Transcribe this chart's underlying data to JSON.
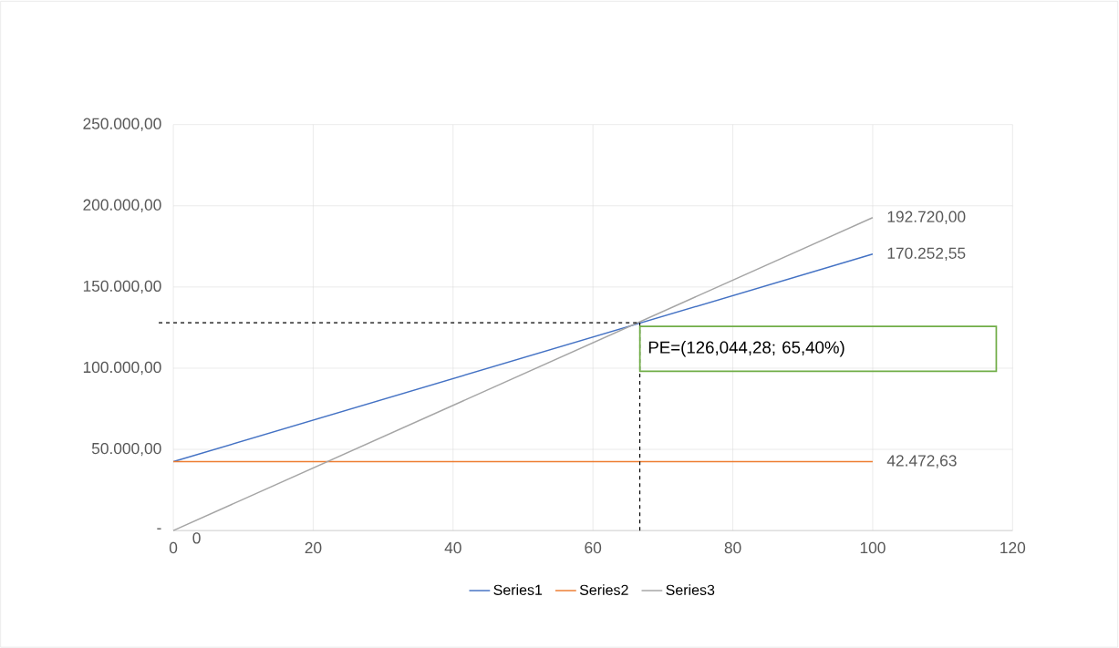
{
  "chart_data": {
    "type": "line",
    "xlim": [
      0,
      120
    ],
    "ylim": [
      0,
      250000
    ],
    "xticks": [
      0,
      20,
      40,
      60,
      80,
      100,
      120
    ],
    "yticks": [
      {
        "value": 0,
        "label": "-"
      },
      {
        "value": 50000,
        "label": "50.000,00"
      },
      {
        "value": 100000,
        "label": "100.000,00"
      },
      {
        "value": 150000,
        "label": "150.000,00"
      },
      {
        "value": 200000,
        "label": "200.000,00"
      },
      {
        "value": 250000,
        "label": "250.000,00"
      }
    ],
    "grid": true,
    "legend": "bottom",
    "marker": "none",
    "line_style": "solid",
    "x": [
      0,
      100
    ],
    "series": [
      {
        "name": "Series1",
        "color": "#4472c4",
        "values": [
          42472.63,
          170252.55
        ],
        "value_labels": [
          null,
          "170.252,55"
        ]
      },
      {
        "name": "Series2",
        "color": "#ed7d31",
        "values": [
          42472.63,
          42472.63
        ],
        "value_labels": [
          null,
          "42.472,63"
        ]
      },
      {
        "name": "Series3",
        "color": "#a5a5a5",
        "values": [
          0,
          192720
        ],
        "value_labels": [
          "0",
          "192.720,00"
        ]
      }
    ],
    "ref_lines": [
      {
        "axis": "x",
        "value": 66.7,
        "color": "#000000",
        "line_style": "dashed"
      },
      {
        "axis": "y",
        "value": 128000,
        "color": "#000000",
        "line_style": "dashed"
      }
    ],
    "annotations": [
      "PE=(126,044,28; 65,40%)"
    ]
  }
}
